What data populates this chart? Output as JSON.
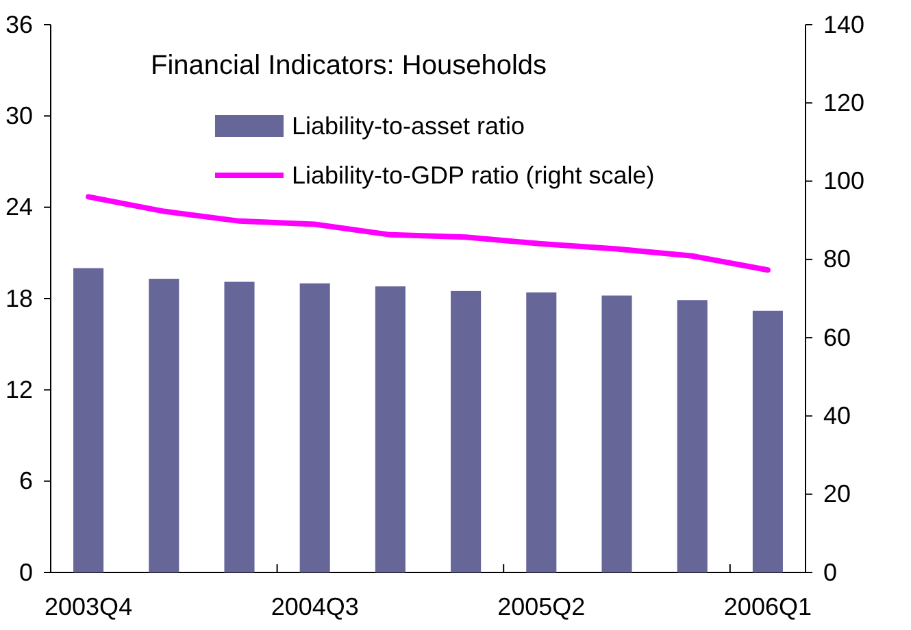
{
  "chart_data": {
    "type": "bar",
    "title": "Financial Indicators: Households",
    "categories": [
      "2003Q4",
      null,
      null,
      "2004Q3",
      null,
      null,
      "2005Q2",
      null,
      null,
      "2006Q1"
    ],
    "series": [
      {
        "name": "Liability-to-asset ratio",
        "color": "#666699",
        "values": [
          20.0,
          19.3,
          19.1,
          19.0,
          18.8,
          18.5,
          18.4,
          18.2,
          17.9,
          17.2
        ]
      },
      {
        "name": "Liability-to-GDP ratio (right scale)",
        "type": "line",
        "axis": "y2",
        "color": "#ff00ff",
        "values": [
          96.0,
          92.3,
          89.8,
          89.0,
          86.3,
          85.7,
          84.0,
          82.7,
          80.9,
          77.3
        ]
      }
    ],
    "ylim": [
      0,
      36
    ],
    "yticks": [
      0,
      6,
      12,
      18,
      24,
      30,
      36
    ],
    "y2lim": [
      0,
      140
    ],
    "y2ticks": [
      0,
      20,
      40,
      60,
      80,
      100,
      120,
      140
    ],
    "legend": "top",
    "grid": false,
    "marker": "none",
    "line_style": "solid"
  }
}
